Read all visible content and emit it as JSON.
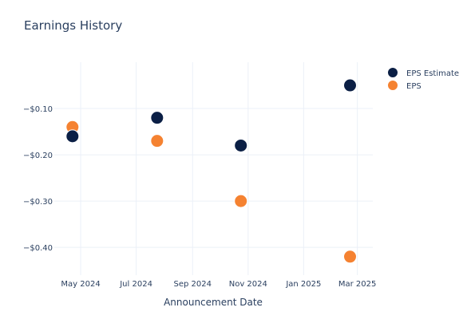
{
  "chart_data": {
    "type": "scatter",
    "title": "Earnings History",
    "xlabel": "Announcement Date",
    "ylabel": "",
    "x_ticks": [
      {
        "date": "2024-05-01",
        "label": "May 2024"
      },
      {
        "date": "2024-07-01",
        "label": "Jul 2024"
      },
      {
        "date": "2024-09-01",
        "label": "Sep 2024"
      },
      {
        "date": "2024-11-01",
        "label": "Nov 2024"
      },
      {
        "date": "2025-01-01",
        "label": "Jan 2025"
      },
      {
        "date": "2025-03-01",
        "label": "Mar 2025"
      }
    ],
    "y_ticks": [
      {
        "value": -0.1,
        "label": "−$0.10"
      },
      {
        "value": -0.2,
        "label": "−$0.20"
      },
      {
        "value": -0.3,
        "label": "−$0.30"
      },
      {
        "value": -0.4,
        "label": "−$0.40"
      }
    ],
    "xlim": [
      "2024-04-02",
      "2025-03-18"
    ],
    "ylim": [
      -0.46,
      0.0
    ],
    "grid": true,
    "legend_position": "top-right",
    "series": [
      {
        "name": "EPS Estimate",
        "color": "#0b1f45",
        "points": [
          {
            "x": "2024-04-22",
            "y": -0.16
          },
          {
            "x": "2024-07-24",
            "y": -0.12
          },
          {
            "x": "2024-10-24",
            "y": -0.18
          },
          {
            "x": "2025-02-21",
            "y": -0.05
          }
        ]
      },
      {
        "name": "EPS",
        "color": "#f58231",
        "points": [
          {
            "x": "2024-04-22",
            "y": -0.14
          },
          {
            "x": "2024-07-24",
            "y": -0.17
          },
          {
            "x": "2024-10-24",
            "y": -0.3
          },
          {
            "x": "2025-02-21",
            "y": -0.42
          }
        ]
      }
    ]
  }
}
